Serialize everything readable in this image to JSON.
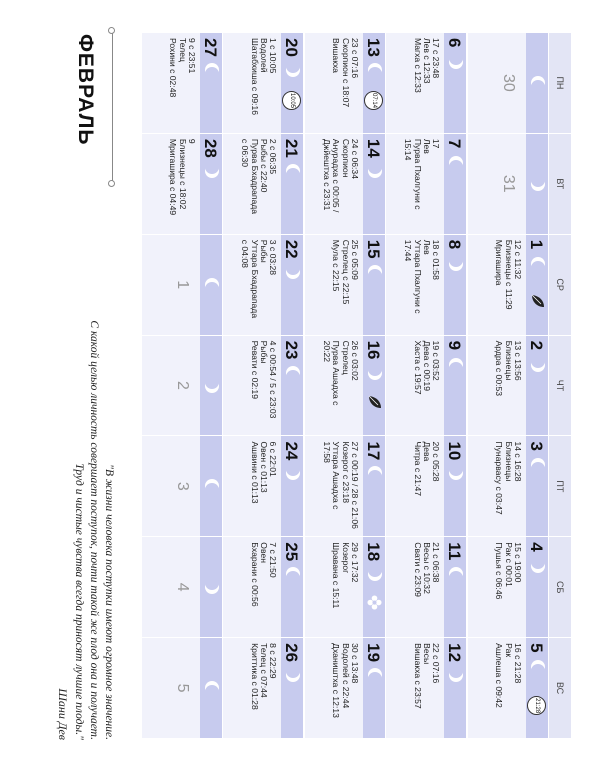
{
  "month": "ФЕВРАЛЬ",
  "quote": {
    "line1": "\"В жизни человека поступки имеют огромное значение.",
    "line2": "С какой целью личность совершает поступок, почти такой же плод она и получает.",
    "line3": "Труд и чистые чувства всегда приносят лучшие плоды.\"",
    "author": "Шани Дев"
  },
  "weekdays": [
    "ПН",
    "ВТ",
    "СР",
    "ЧТ",
    "ПТ",
    "СБ",
    "ВС"
  ],
  "weeks": [
    [
      {
        "num": "30",
        "gray": true,
        "info": []
      },
      {
        "num": "31",
        "gray": true,
        "info": []
      },
      {
        "num": "1",
        "info": [
          "12 с 11:32",
          "Близнецы с 11:29",
          "Мригашира"
        ],
        "icon": "leaf-icon"
      },
      {
        "num": "2",
        "info": [
          "13 с 13:56",
          "Близнецы",
          "Ардра с 00:53"
        ]
      },
      {
        "num": "3",
        "info": [
          "14 с 16:28",
          "Близнецы",
          "Пунарвасу с 03:47"
        ]
      },
      {
        "num": "4",
        "info": [
          "15 с 19:00",
          "Рак с 00:01",
          "Пушья с 06:46"
        ]
      },
      {
        "num": "5",
        "badge": "21:28",
        "info": [
          "16 с 21:28",
          "Рак",
          "Ашлеша с 09:42"
        ]
      }
    ],
    [
      {
        "num": "6",
        "info": [
          "17 с 23:48",
          "Лев с 12:33",
          "Магха с 12:33"
        ]
      },
      {
        "num": "7",
        "info": [
          "17",
          "Лев",
          "Пурва Пхалгуни с",
          "15:14"
        ]
      },
      {
        "num": "8",
        "info": [
          "18 с 01:58",
          "Лев",
          "Уттара Пхалгуни с",
          "17:44"
        ]
      },
      {
        "num": "9",
        "info": [
          "19 с 03:52",
          "Дева с 00:19",
          "Хаста с 19:57"
        ]
      },
      {
        "num": "10",
        "info": [
          "20 с 05:28",
          "Дева",
          "Читра с 21:47"
        ]
      },
      {
        "num": "11",
        "info": [
          "21 с 06:38",
          "Весы с 10:32",
          "Свати с 23:09"
        ]
      },
      {
        "num": "12",
        "info": [
          "22 с 07:16",
          "Весы",
          "Вишакха с 23:57"
        ]
      }
    ],
    [
      {
        "num": "13",
        "badge": "07:14",
        "info": [
          "23 с 07:16",
          "Скорпион с 18:07",
          "Вишакха"
        ]
      },
      {
        "num": "14",
        "info": [
          "24 с 06:34",
          "Скорпион",
          "Анурадха с 00:05 /",
          "Джйештха с 23:31"
        ]
      },
      {
        "num": "15",
        "info": [
          "25 с 05:09",
          "Стрелец с 22:15",
          "Мула с 22:15"
        ]
      },
      {
        "num": "16",
        "info": [
          "26 с 03:02",
          "Стрелец",
          "Пурва Ашадха с",
          "20:22"
        ],
        "icon": "leaf-icon"
      },
      {
        "num": "17",
        "info": [
          "27 с 00:19 / 28 с 21:06",
          "Козерог с 23:18",
          "Уттара Ашадха с",
          "17:58"
        ]
      },
      {
        "num": "18",
        "info": [
          "29 с 17:32",
          "Козерог",
          "Шравана с 15:11"
        ],
        "icon": "flower-icon"
      },
      {
        "num": "19",
        "info": [
          "30 с 13:48",
          "Водолей с 22:44",
          "Дхаништха с 12:13"
        ]
      }
    ],
    [
      {
        "num": "20",
        "badge": "10:05",
        "info": [
          "1 с 10:05",
          "Водолей",
          "Шатабхиша с 09:16"
        ]
      },
      {
        "num": "21",
        "info": [
          "2 с 06:35",
          "Рыбы с 22:40",
          "Пурва Бхадрапада",
          "с 06:30"
        ]
      },
      {
        "num": "22",
        "info": [
          "3 с 03:28",
          "Рыбы",
          "Уттара Бхадрапада",
          "с 04:08"
        ]
      },
      {
        "num": "23",
        "info": [
          "4 с 00:54 / 5 с 23:03",
          "Рыбы",
          "Ревати с 02:19"
        ]
      },
      {
        "num": "24",
        "info": [
          "6 с 22:01",
          "Овен с 01:13",
          "Ашвини с 01:13"
        ]
      },
      {
        "num": "25",
        "info": [
          "7 с 21:50",
          "Овен",
          "Бхарани с 00:56"
        ]
      },
      {
        "num": "26",
        "info": [
          "8 с 22:29",
          "Телец с 07:44",
          "Криттика с 01:28"
        ]
      }
    ],
    [
      {
        "num": "27",
        "info": [
          "9 с 23:51",
          "Телец",
          "Рохини с 02:48"
        ]
      },
      {
        "num": "28",
        "info": [
          "9",
          "Близнецы с 18:02",
          "Мригашира с 04:49"
        ]
      },
      {
        "num": "1",
        "gray": true,
        "info": []
      },
      {
        "num": "2",
        "gray": true,
        "info": []
      },
      {
        "num": "3",
        "gray": true,
        "info": []
      },
      {
        "num": "4",
        "gray": true,
        "info": []
      },
      {
        "num": "5",
        "gray": true,
        "info": []
      }
    ]
  ]
}
